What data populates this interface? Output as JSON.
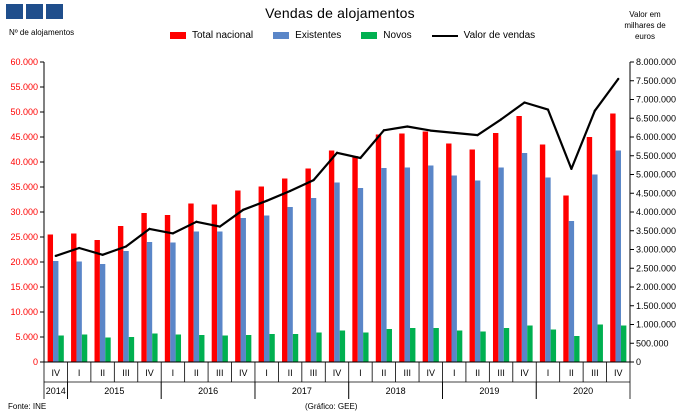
{
  "title": "Vendas de alojamentos",
  "left_axis_label": "Nº de alojamentos",
  "right_axis_label": "Valor em\nmilhares de\neuros",
  "source": "Fonte: INE",
  "credit": "(Gráfico: GEE)",
  "colors": {
    "total": "#ff0000",
    "existing": "#5a86c8",
    "new": "#00b050",
    "value": "#000000",
    "logo": "#1f4e8c"
  },
  "chart_data": {
    "type": "bar",
    "title": "Vendas de alojamentos",
    "categories": [
      "IV",
      "I",
      "II",
      "III",
      "IV",
      "I",
      "II",
      "III",
      "IV",
      "I",
      "II",
      "III",
      "IV",
      "I",
      "II",
      "III",
      "IV",
      "I",
      "II",
      "III",
      "IV",
      "I",
      "II",
      "III",
      "IV"
    ],
    "years": [
      {
        "label": "2014",
        "start": 0,
        "count": 1
      },
      {
        "label": "2015",
        "start": 1,
        "count": 4
      },
      {
        "label": "2016",
        "start": 5,
        "count": 4
      },
      {
        "label": "2017",
        "start": 9,
        "count": 4
      },
      {
        "label": "2018",
        "start": 13,
        "count": 4
      },
      {
        "label": "2019",
        "start": 17,
        "count": 4
      },
      {
        "label": "2020",
        "start": 21,
        "count": 4
      }
    ],
    "left_axis": {
      "min": 0,
      "max": 60000,
      "step": 5000,
      "tick_labels": [
        "0",
        "5.000",
        "10.000",
        "15.000",
        "20.000",
        "25.000",
        "30.000",
        "35.000",
        "40.000",
        "45.000",
        "50.000",
        "55.000",
        "60.000"
      ]
    },
    "right_axis": {
      "min": 0,
      "max": 8000000,
      "step": 500000,
      "tick_labels": [
        "0",
        "500.000",
        "1.000.000",
        "1.500.000",
        "2.000.000",
        "2.500.000",
        "3.000.000",
        "3.500.000",
        "4.000.000",
        "4.500.000",
        "5.000.000",
        "5.500.000",
        "6.000.000",
        "6.500.000",
        "7.000.000",
        "7.500.000",
        "8.000.000"
      ]
    },
    "series": [
      {
        "name": "Total nacional",
        "axis": "left",
        "kind": "bar",
        "color": "#ff0000",
        "values": [
          25500,
          25700,
          24400,
          27200,
          29800,
          29400,
          31700,
          31500,
          34300,
          35100,
          36700,
          38700,
          42300,
          41200,
          45500,
          45700,
          46100,
          43700,
          42500,
          45800,
          49200,
          43500,
          33300,
          45000,
          49700
        ]
      },
      {
        "name": "Existentes",
        "axis": "left",
        "kind": "bar",
        "color": "#5a86c8",
        "values": [
          20200,
          20100,
          19600,
          22200,
          24000,
          23900,
          26100,
          26100,
          28800,
          29300,
          31000,
          32800,
          35900,
          34800,
          38800,
          38900,
          39300,
          37300,
          36300,
          38900,
          41800,
          36900,
          28200,
          37500,
          42300
        ]
      },
      {
        "name": "Novos",
        "axis": "left",
        "kind": "bar",
        "color": "#00b050",
        "values": [
          5300,
          5500,
          4900,
          5000,
          5700,
          5500,
          5400,
          5300,
          5400,
          5600,
          5600,
          5900,
          6300,
          5900,
          6600,
          6800,
          6800,
          6300,
          6100,
          6800,
          7300,
          6500,
          5200,
          7500,
          7300
        ]
      },
      {
        "name": "Valor de vendas",
        "axis": "right",
        "kind": "line",
        "color": "#000000",
        "values": [
          2830000,
          3040000,
          2860000,
          3080000,
          3550000,
          3430000,
          3740000,
          3610000,
          4060000,
          4300000,
          4560000,
          4850000,
          5580000,
          5440000,
          6180000,
          6280000,
          6170000,
          6110000,
          6050000,
          6470000,
          6920000,
          6730000,
          5150000,
          6700000,
          7550000
        ]
      }
    ]
  }
}
